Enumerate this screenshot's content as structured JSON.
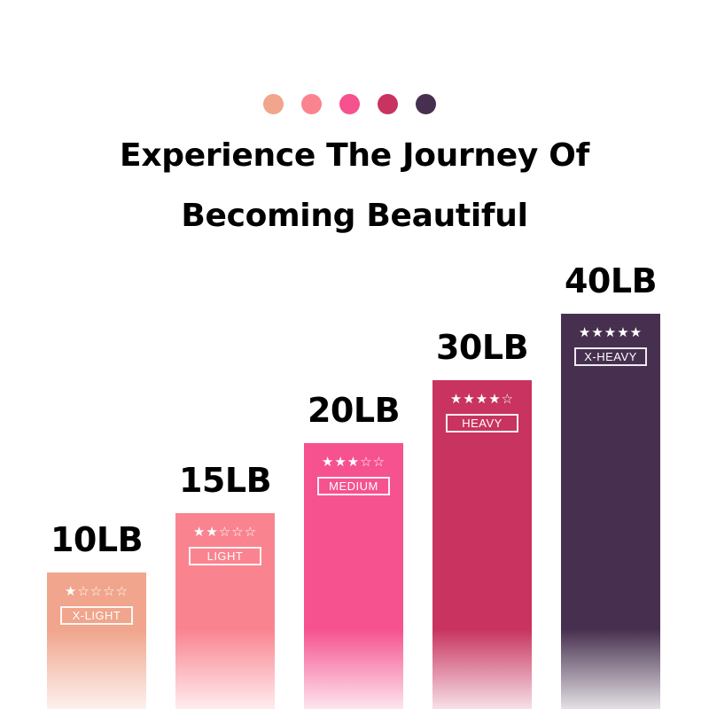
{
  "dots": [
    "#f0a58c",
    "#f98490",
    "#f5528f",
    "#c8345f",
    "#47304f"
  ],
  "title": {
    "line1": "Experience The Journey Of",
    "line2": "Becoming Beautiful"
  },
  "bands": [
    {
      "weight": "10LB",
      "level": "X-LIGHT",
      "stars": "★☆☆☆☆",
      "rating": 1,
      "color": "#f0a58c"
    },
    {
      "weight": "15LB",
      "level": "LIGHT",
      "stars": "★★☆☆☆",
      "rating": 2,
      "color": "#f98490"
    },
    {
      "weight": "20LB",
      "level": "MEDIUM",
      "stars": "★★★☆☆",
      "rating": 3,
      "color": "#f5528f"
    },
    {
      "weight": "30LB",
      "level": "HEAVY",
      "stars": "★★★★☆",
      "rating": 4,
      "color": "#c8345f"
    },
    {
      "weight": "40LB",
      "level": "X-HEAVY",
      "stars": "★★★★★",
      "rating": 5,
      "color": "#47304f"
    }
  ]
}
